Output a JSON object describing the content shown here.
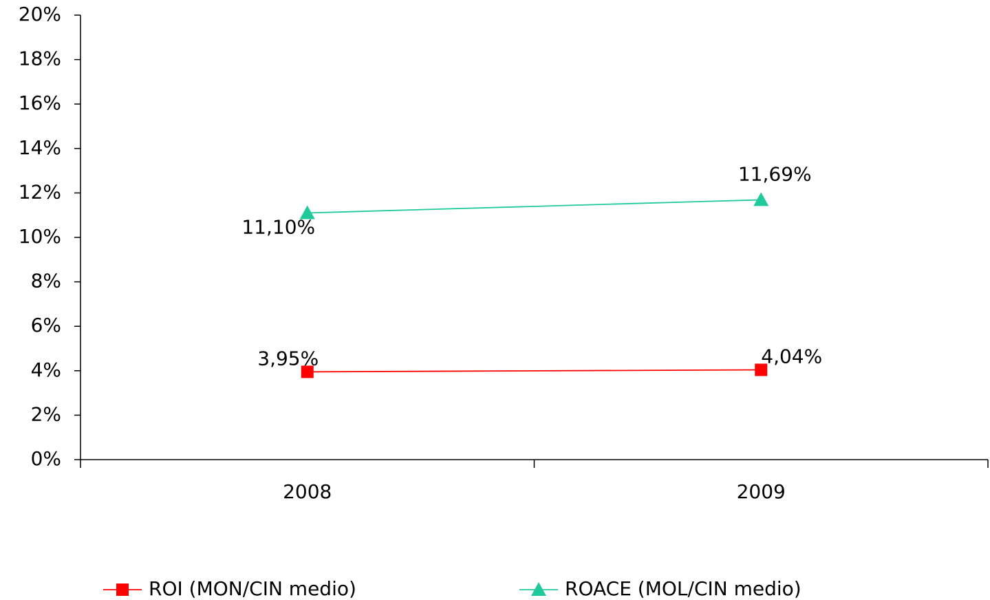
{
  "chart_data": {
    "type": "line",
    "categories": [
      "2008",
      "2009"
    ],
    "series": [
      {
        "name": "ROI (MON/CIN medio)",
        "color": "#ff0000",
        "marker": "square",
        "values": [
          3.95,
          4.04
        ],
        "value_labels": [
          "3,95%",
          "4,04%"
        ]
      },
      {
        "name": "ROACE (MOL/CIN medio)",
        "color": "#1fc99b",
        "marker": "triangle",
        "values": [
          11.1,
          11.69
        ],
        "value_labels": [
          "11,10%",
          "11,69%"
        ]
      }
    ],
    "ylim": [
      0,
      20
    ],
    "yticks": [
      {
        "value": 0,
        "label": "0%"
      },
      {
        "value": 2,
        "label": "2%"
      },
      {
        "value": 4,
        "label": "4%"
      },
      {
        "value": 6,
        "label": "6%"
      },
      {
        "value": 8,
        "label": "8%"
      },
      {
        "value": 10,
        "label": "10%"
      },
      {
        "value": 12,
        "label": "12%"
      },
      {
        "value": 14,
        "label": "14%"
      },
      {
        "value": 16,
        "label": "16%"
      },
      {
        "value": 18,
        "label": "18%"
      },
      {
        "value": 20,
        "label": "20%"
      }
    ],
    "grid": false,
    "legend": "bottom"
  }
}
